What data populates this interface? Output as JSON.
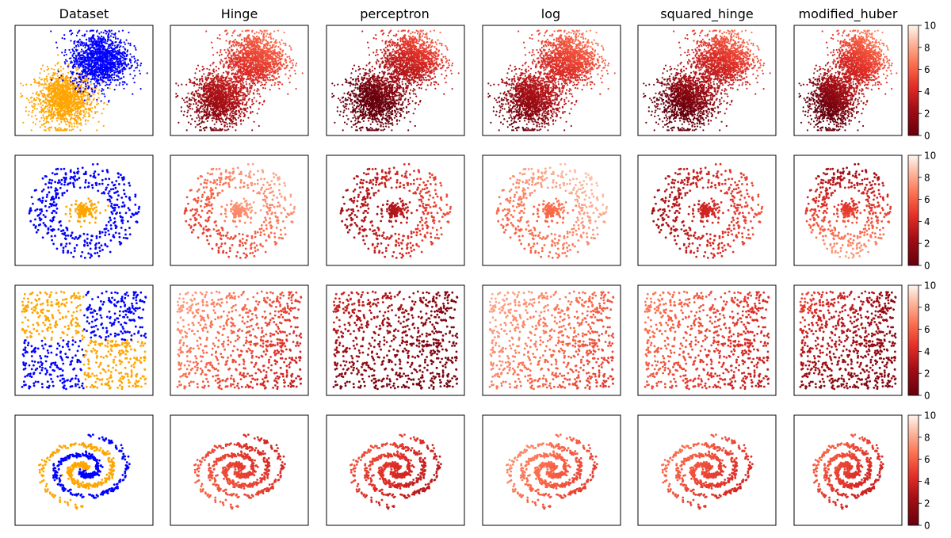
{
  "figure": {
    "title": "",
    "column_titles": [
      "Dataset",
      "Hinge",
      "perceptron",
      "log",
      "squared_hinge",
      "modified_huber"
    ],
    "colorbar_ticks": [
      "0",
      "2",
      "4",
      "6",
      "8",
      "10"
    ]
  },
  "chart_data": {
    "type": "scatter",
    "layout": "grid 4 rows x 6 columns, colorbar at right of each row",
    "axes_ticks_visible": false,
    "grid": false,
    "class_colors": {
      "class_0": "#ffa500",
      "class_1": "#0000ff"
    },
    "colormap": "Reds_r (0 = dark red, 10 = white)",
    "colorbar": {
      "min": 0,
      "max": 10,
      "ticks": [
        0,
        2,
        4,
        6,
        8,
        10
      ]
    },
    "rows": [
      {
        "dataset": "two gaussian blobs",
        "first_column": "class colored (orange lower-left, blue upper-right)",
        "other_columns": "colored by loss-based score, dark lower-left to white upper-right"
      },
      {
        "dataset": "inner disk within outer ring",
        "first_column": "class colored (orange inner disk, blue outer ring)",
        "other_columns": "colored by loss-based score"
      },
      {
        "dataset": "XOR quadrants",
        "first_column": "class colored (orange top-left and bottom-right, blue top-right and bottom-left)",
        "other_columns": "colored by loss-based score"
      },
      {
        "dataset": "two interleaved spirals",
        "first_column": "class colored (orange and blue spiral arms)",
        "other_columns": "colored by loss-based score"
      }
    ],
    "losses": [
      "Hinge",
      "perceptron",
      "log",
      "squared_hinge",
      "modified_huber"
    ]
  }
}
